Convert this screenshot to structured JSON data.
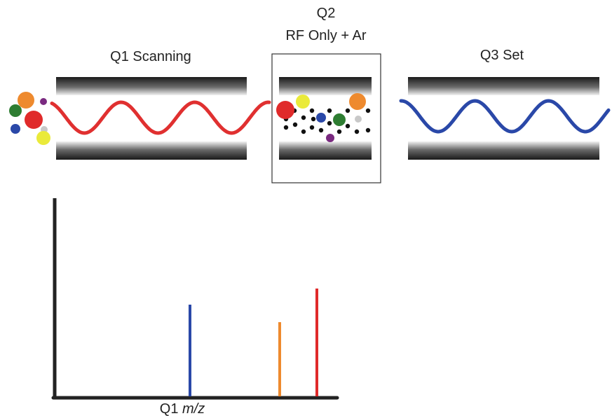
{
  "stages": {
    "q1": {
      "label": "Q1 Scanning"
    },
    "q2": {
      "label": "Q2",
      "sublabel": "RF Only + Ar"
    },
    "q3": {
      "label": "Q3 Set"
    }
  },
  "spectrum": {
    "axis_label": {
      "prefix": "Q1",
      "variable": "m/z"
    }
  }
}
